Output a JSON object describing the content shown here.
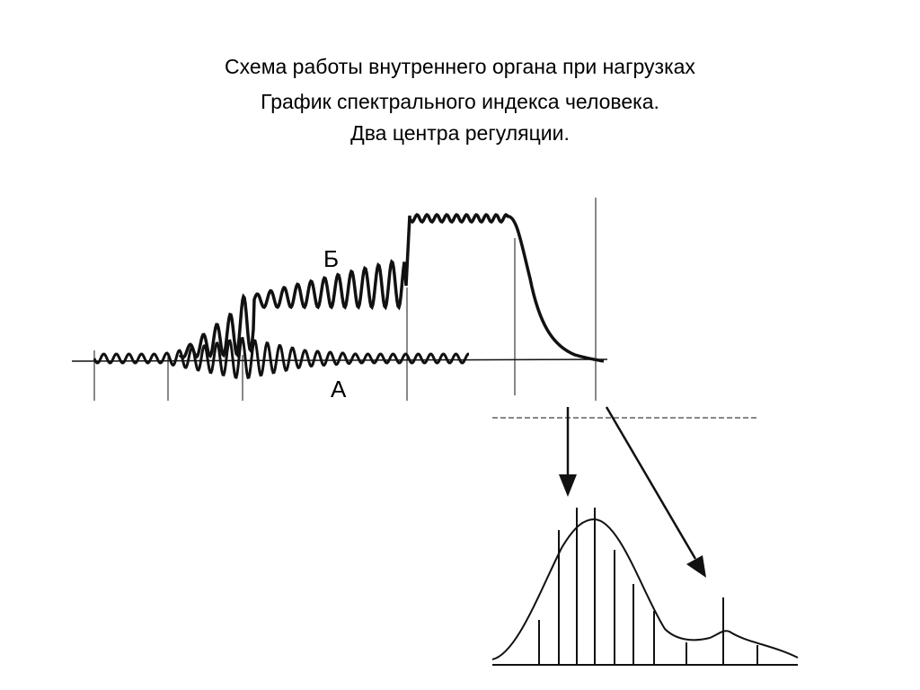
{
  "header": {
    "title": "Схема работы внутреннего органа при нагрузках",
    "subtitle_lines": [
      "График спектрального индекса человека.",
      "Два центра регуляции."
    ]
  },
  "labels": {
    "curve_b": "Б",
    "curve_a": "А"
  }
}
